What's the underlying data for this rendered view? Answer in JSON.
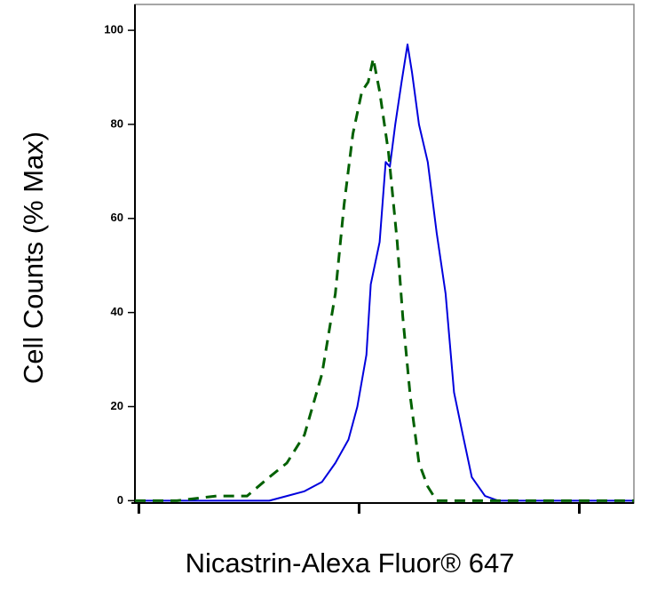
{
  "chart_data": {
    "type": "line",
    "xlabel": "Nicastrin-Alexa Fluor® 647",
    "ylabel": "Cell Counts (% Max)",
    "xscale": "log",
    "xlim": [
      0.96,
      177
    ],
    "xticks": [
      1,
      10,
      100
    ],
    "ylim": [
      -0.5,
      105.5
    ],
    "yticks": [
      0,
      20,
      40,
      60,
      80,
      100
    ],
    "series": [
      {
        "color": "#0000dd",
        "style": "solid",
        "x": [
          0.96,
          3.91,
          4.7,
          5.65,
          6.79,
          7.8,
          8.95,
          9.82,
          10.8,
          11.3,
          12.4,
          13.2,
          13.8,
          14.6,
          15.6,
          16.6,
          17.4,
          18.7,
          20.5,
          22.5,
          24.7,
          27.0,
          29.6,
          32.5,
          37.3,
          42.9,
          177
        ],
        "values": [
          0,
          0,
          1,
          2,
          4,
          8,
          13,
          20,
          31,
          46,
          55,
          72,
          71,
          80,
          89,
          97,
          91,
          80,
          72,
          57,
          44,
          23,
          14,
          5,
          1,
          0,
          0
        ]
      },
      {
        "color": "#006000",
        "style": "dashed",
        "x": [
          0.96,
          1.49,
          2.25,
          3.1,
          3.91,
          4.7,
          5.65,
          6.79,
          7.8,
          8.55,
          9.38,
          10.3,
          11.0,
          11.6,
          12.4,
          13.6,
          14.9,
          15.8,
          17.1,
          18.7,
          20.5,
          22.5,
          27.0,
          177
        ],
        "values": [
          0,
          0,
          1,
          1,
          5,
          8,
          14,
          27,
          44,
          63,
          78,
          87,
          89,
          94,
          87,
          74,
          55,
          39,
          22,
          8,
          3,
          0,
          0,
          0
        ]
      }
    ]
  }
}
